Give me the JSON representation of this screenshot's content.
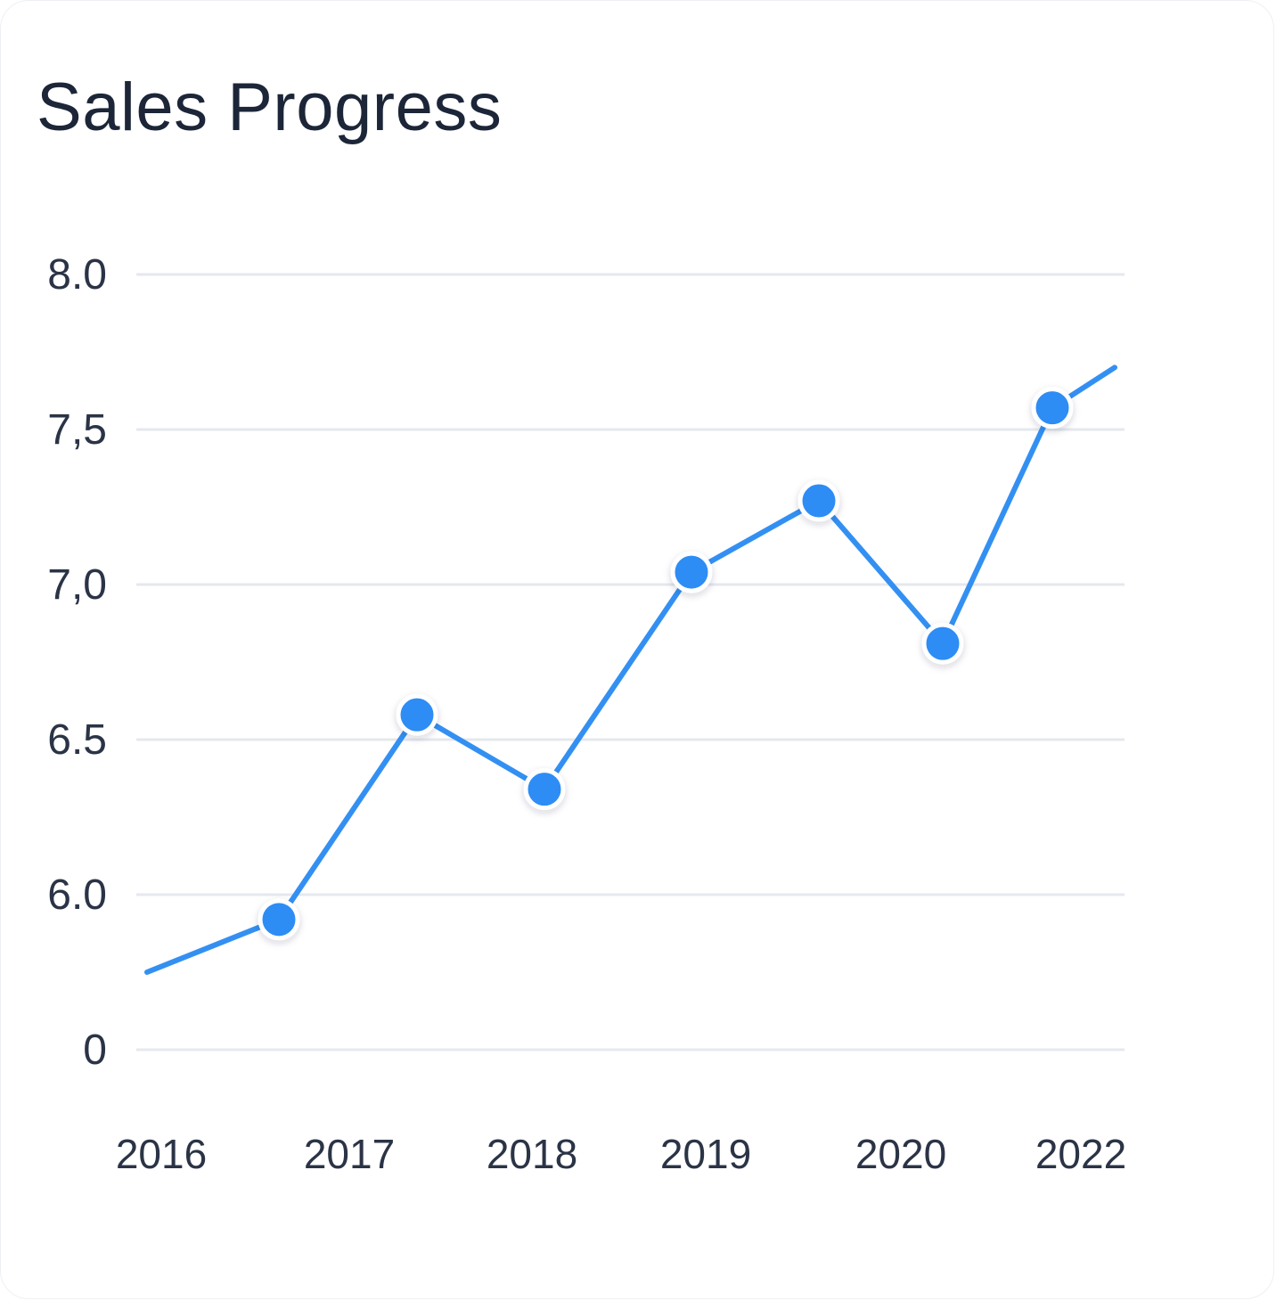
{
  "card": {
    "title": "Sales Progress"
  },
  "colors": {
    "line": "#3390f2",
    "point": "#2f8cf5",
    "point_stroke": "#ffffff",
    "grid": "#e5e8ee",
    "text": "#2b3446",
    "title": "#1c2638"
  },
  "chart_data": {
    "type": "line",
    "title": "Sales Progress",
    "y_tick_labels": [
      "0",
      "6.0",
      "6.5",
      "7,0",
      "7,5",
      "8.0"
    ],
    "x_tick_labels": [
      "2016",
      "2017",
      "2018",
      "2019",
      "2020",
      "2022"
    ],
    "grid": true,
    "legend": "none",
    "series": [
      {
        "values": [
          5.75,
          5.92,
          6.58,
          6.34,
          7.04,
          7.27,
          6.81,
          7.57,
          7.7
        ],
        "markers": [
          false,
          true,
          true,
          true,
          true,
          true,
          true,
          true,
          false
        ]
      }
    ]
  }
}
